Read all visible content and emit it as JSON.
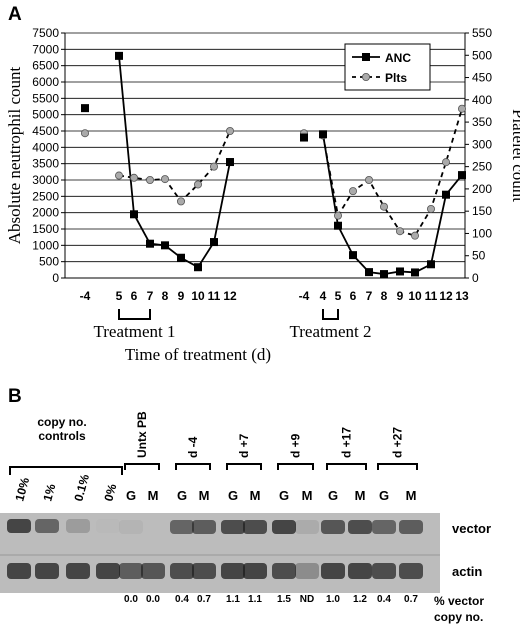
{
  "panel_a_letter": "A",
  "panel_b_letter": "B",
  "chart_data": {
    "type": "line",
    "x": [
      "-4",
      "5",
      "6",
      "7",
      "8",
      "9",
      "10",
      "11",
      "12",
      "-4",
      "4",
      "5",
      "6",
      "7",
      "8",
      "9",
      "10",
      "11",
      "12",
      "13"
    ],
    "ylabel": "Absolute neutrophil count",
    "y2label": "Platelet count",
    "xlabel": "Time of treatment (d)",
    "ylim": [
      0,
      7500
    ],
    "y2lim": [
      0,
      550
    ],
    "yticks": [
      0,
      500,
      1000,
      1500,
      2000,
      2500,
      3000,
      3500,
      4000,
      4500,
      5000,
      5500,
      6000,
      6500,
      7000,
      7500
    ],
    "y2ticks": [
      0,
      50,
      100,
      150,
      200,
      250,
      300,
      350,
      400,
      450,
      500,
      550
    ],
    "grid": true,
    "legend_position": "top-right",
    "series": [
      {
        "name": "ANC",
        "axis": "left",
        "color": "#000000",
        "values": [
          5200,
          6800,
          1950,
          1050,
          1000,
          620,
          330,
          1100,
          3550,
          4300,
          4400,
          1600,
          700,
          180,
          120,
          200,
          170,
          420,
          2550,
          3150
        ]
      },
      {
        "name": "Plts",
        "axis": "right",
        "color": "#aaaaaa",
        "values": [
          325,
          230,
          225,
          220,
          222,
          172,
          210,
          250,
          330,
          325,
          320,
          140,
          195,
          220,
          160,
          105,
          95,
          155,
          260,
          380
        ]
      }
    ],
    "segments": [
      [
        0,
        0
      ],
      [
        1,
        8
      ],
      [
        9,
        9
      ],
      [
        10,
        19
      ]
    ],
    "treatments": [
      {
        "label": "Treatment 1",
        "from_index": 1,
        "to_index": 3
      },
      {
        "label": "Treatment 2",
        "from_index": 10,
        "to_index": 11
      }
    ]
  },
  "gel": {
    "copy_controls_label": "copy no.\ncontrols",
    "copy_controls": [
      "10%",
      "1%",
      "0.1%",
      "0%"
    ],
    "groups": [
      {
        "label": "Untx PB",
        "lanes": [
          "G",
          "M"
        ],
        "pct": [
          "0.0",
          "0.0"
        ]
      },
      {
        "label": "d -4",
        "lanes": [
          "G",
          "M"
        ],
        "pct": [
          "0.4",
          "0.7"
        ]
      },
      {
        "label": "d +7",
        "lanes": [
          "G",
          "M"
        ],
        "pct": [
          "1.1",
          "1.1"
        ]
      },
      {
        "label": "d +9",
        "lanes": [
          "G",
          "M"
        ],
        "pct": [
          "1.5",
          "ND"
        ]
      },
      {
        "label": "d +17",
        "lanes": [
          "G",
          "M"
        ],
        "pct": [
          "1.0",
          "1.2"
        ]
      },
      {
        "label": "d +27",
        "lanes": [
          "G",
          "M"
        ],
        "pct": [
          "0.4",
          "0.7"
        ]
      }
    ],
    "row_labels": [
      "vector",
      "actin"
    ],
    "pct_label_line1": "% vector",
    "pct_label_line2": "copy no."
  }
}
